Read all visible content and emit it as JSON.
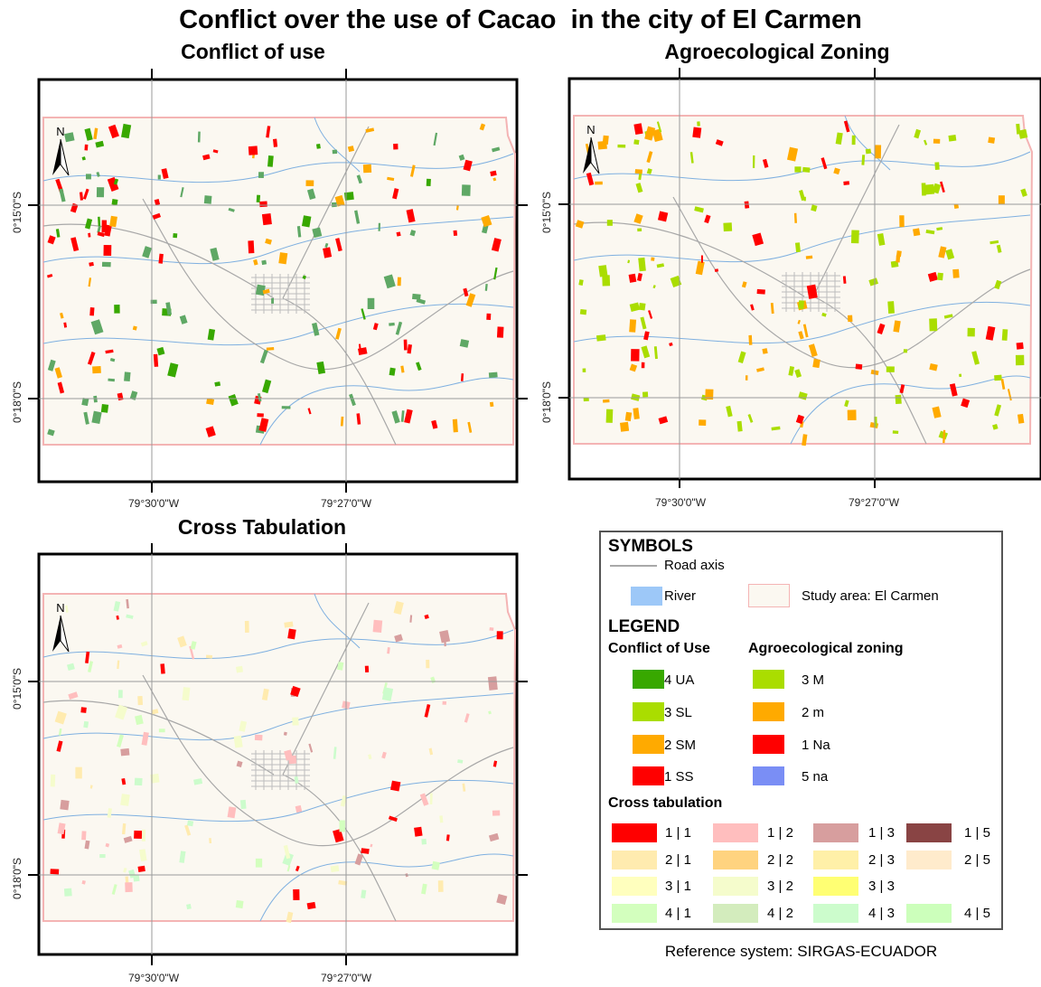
{
  "title": "Conflict over the use of Cacao  in the city of El Carmen",
  "maps": [
    {
      "title": "Conflict of use",
      "north": "N",
      "lon_labels": [
        "79°30'0\"W",
        "79°27'0\"W"
      ],
      "lat_labels": [
        "0°15'0\"S",
        "0°18'0\"S"
      ]
    },
    {
      "title": "Agroecological Zoning",
      "north": "N",
      "lon_labels": [
        "79°30'0\"W",
        "79°27'0\"W"
      ],
      "lat_labels": [
        "0°15'0\"S",
        "0°18'0\"S"
      ]
    },
    {
      "title": "Cross Tabulation",
      "north": "N",
      "lon_labels": [
        "79°30'0\"W",
        "79°27'0\"W"
      ],
      "lat_labels": [
        "0°15'0\"S",
        "0°18'0\"S"
      ]
    }
  ],
  "legend": {
    "symbols_title": "SYMBOLS",
    "road": "Road axis",
    "river": "River",
    "study_area": "Study area: El Carmen",
    "legend_title": "LEGEND",
    "conflict_title": "Conflict of Use",
    "conflict_items": [
      {
        "label": "4 UA",
        "color": "#38a800"
      },
      {
        "label": "3 SL",
        "color": "#aadd00"
      },
      {
        "label": "2 SM",
        "color": "#ffaa00"
      },
      {
        "label": "1 SS",
        "color": "#ff0000"
      }
    ],
    "zoning_title": "Agroecological zoning",
    "zoning_items": [
      {
        "label": "3 M",
        "color": "#aadd00"
      },
      {
        "label": "2 m",
        "color": "#ffaa00"
      },
      {
        "label": "1 Na",
        "color": "#ff0000"
      },
      {
        "label": "5 na",
        "color": "#7a8ef5"
      }
    ],
    "cross_title": "Cross tabulation",
    "cross_items": [
      {
        "label": "1 | 1",
        "color": "#ff0000"
      },
      {
        "label": "1 | 2",
        "color": "#ffbebe"
      },
      {
        "label": "1 | 3",
        "color": "#d79e9e"
      },
      {
        "label": "1 | 5",
        "color": "#894444"
      },
      {
        "label": "2 | 1",
        "color": "#ffebaf"
      },
      {
        "label": "2 | 2",
        "color": "#ffd37f"
      },
      {
        "label": "2 | 3",
        "color": "#fff0a8"
      },
      {
        "label": "2 | 5",
        "color": "#ffebcc"
      },
      {
        "label": "3 | 1",
        "color": "#ffffbe"
      },
      {
        "label": "3 | 2",
        "color": "#f5fccc"
      },
      {
        "label": "3 | 3",
        "color": "#ffff73"
      },
      {
        "label": "4 | 1",
        "color": "#d3ffbe"
      },
      {
        "label": "4 | 2",
        "color": "#d3ecbd"
      },
      {
        "label": "4 | 3",
        "color": "#ccfccc"
      },
      {
        "label": "4 | 5",
        "color": "#ccffbb"
      }
    ],
    "reference": "Reference system: SIRGAS-ECUADOR"
  },
  "colors": {
    "study_area_fill": "#fbf8f1",
    "study_area_border": "#f4b4b4",
    "river": "#7fb0e0",
    "road": "#a8a8a8",
    "grid": "#9a9a9a",
    "conflict_patch": "#5fa865"
  }
}
